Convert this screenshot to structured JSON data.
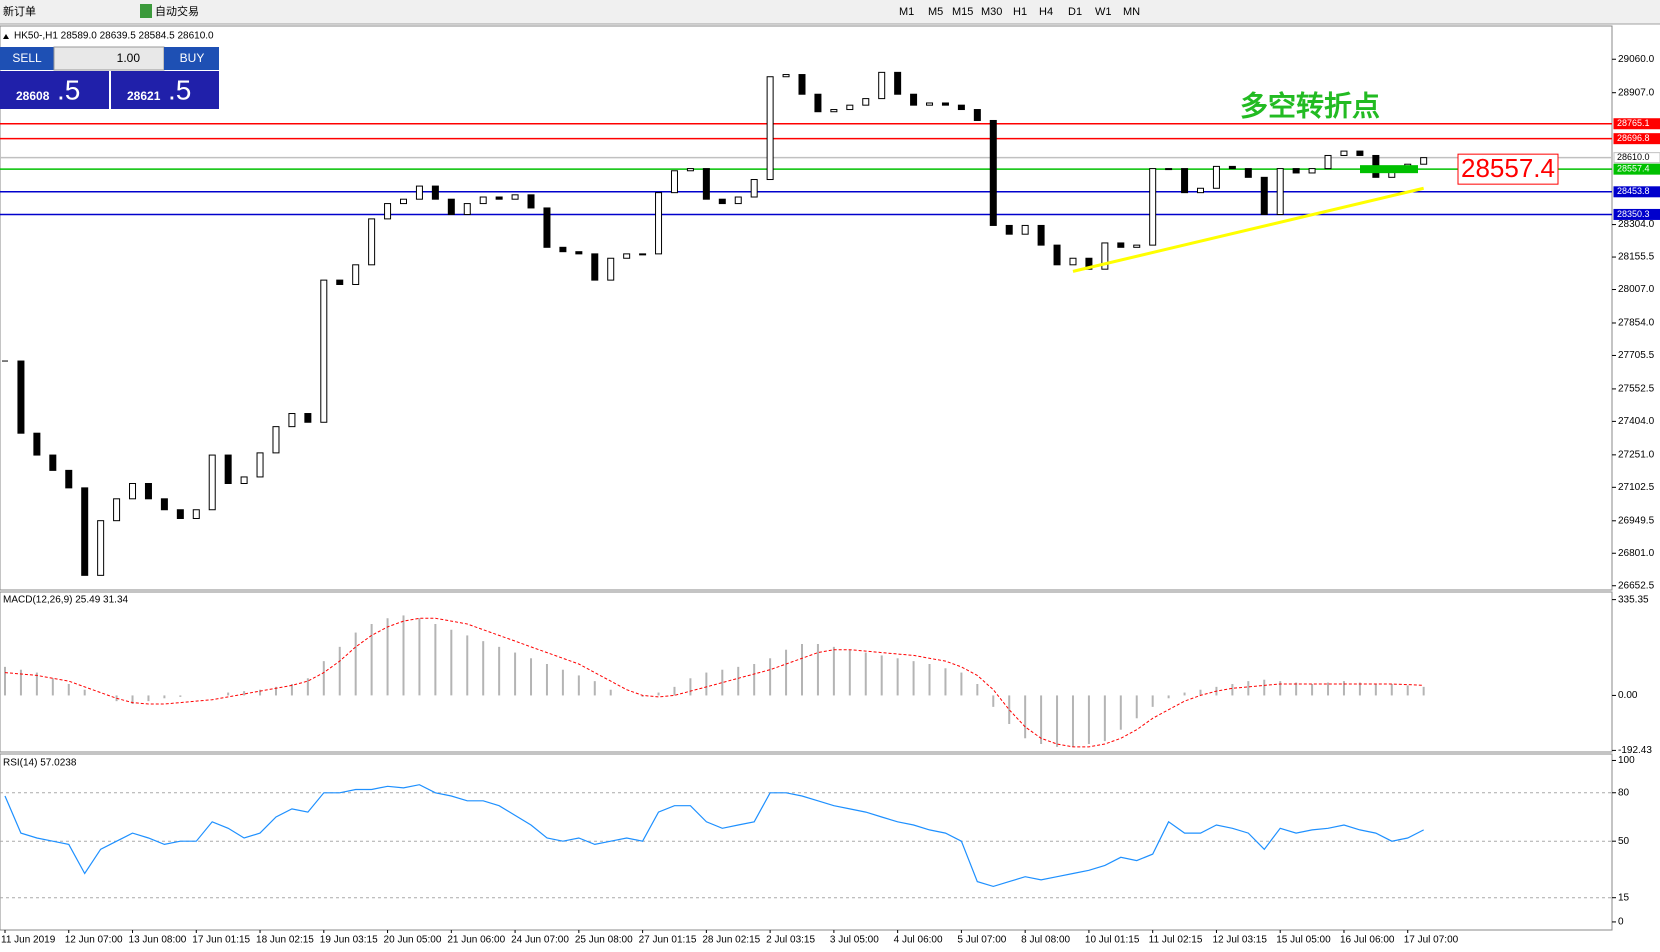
{
  "toolbar": {
    "new_order": "新订单",
    "auto_trading": "自动交易",
    "timeframes": [
      "M1",
      "M5",
      "M15",
      "M30",
      "H1",
      "H4",
      "D1",
      "W1",
      "MN"
    ]
  },
  "trade_panel": {
    "sell": "SELL",
    "buy": "BUY",
    "lots": "1.00",
    "sell_price": "28608",
    "sell_digits": ".5",
    "buy_price": "28621",
    "buy_digits": ".5"
  },
  "chart_header": "HK50-,H1  28589.0 28639.5 28584.5 28610.0",
  "macd_label": "MACD(12,26,9) 25.49 31.34",
  "rsi_label": "RSI(14) 57.0238",
  "chart_data": [
    {
      "type": "candlestick",
      "annotation": "多空转折点",
      "categories": [
        "11 Jun 2019",
        null,
        null,
        null,
        "12 Jun 07:00",
        null,
        null,
        null,
        "13 Jun 08:00",
        null,
        null,
        null,
        "17 Jun 01:15",
        null,
        null,
        null,
        "18 Jun 02:15",
        null,
        null,
        null,
        "19 Jun 03:15",
        null,
        null,
        null,
        "20 Jun 05:00",
        null,
        null,
        null,
        "21 Jun 06:00",
        null,
        null,
        null,
        "24 Jun 07:00",
        null,
        null,
        null,
        "25 Jun 08:00",
        null,
        null,
        null,
        "27 Jun 01:15",
        null,
        null,
        null,
        "28 Jun 02:15",
        null,
        null,
        null,
        "2 Jul 03:15",
        null,
        null,
        null,
        "3 Jul 05:00",
        null,
        null,
        null,
        "4 Jul 06:00",
        null,
        null,
        null,
        "5 Jul 07:00",
        null,
        null,
        null,
        "8 Jul 08:00",
        null,
        null,
        null,
        "10 Jul 01:15",
        null,
        null,
        null,
        "11 Jul 02:15",
        null,
        null,
        null,
        "12 Jul 03:15",
        null,
        null,
        null,
        "15 Jul 05:00",
        null,
        null,
        null,
        "16 Jul 06:00",
        null,
        null,
        null,
        "17 Jul 07:00",
        null
      ],
      "close": [
        27680,
        27350,
        27250,
        27180,
        27100,
        26700,
        26950,
        27050,
        27120,
        27050,
        27000,
        26960,
        27000,
        27250,
        27120,
        27150,
        27260,
        27380,
        27440,
        27400,
        28050,
        28030,
        28120,
        28330,
        28400,
        28420,
        28480,
        28420,
        28350,
        28400,
        28430,
        28420,
        28440,
        28380,
        28200,
        28180,
        28170,
        28050,
        28150,
        28170,
        28170,
        28450,
        28550,
        28560,
        28420,
        28400,
        28430,
        28510,
        28980,
        28990,
        28900,
        28820,
        28830,
        28850,
        28880,
        29000,
        28900,
        28850,
        28860,
        28850,
        28830,
        28780,
        28300,
        28260,
        28300,
        28210,
        28120,
        28150,
        28100,
        28220,
        28200,
        28210,
        28560,
        28560,
        28450,
        28470,
        28570,
        28560,
        28520,
        28350,
        28560,
        28540,
        28560,
        28620,
        28640,
        28620,
        28520,
        28560,
        28580,
        28610
      ],
      "ylim": [
        26633,
        29212
      ],
      "yticks": [
        {
          "value": 29060,
          "label": "29060.0"
        },
        {
          "value": 28907,
          "label": "28907.0"
        },
        {
          "value": 28304,
          "label": "28304.0"
        },
        28155.5,
        {
          "value": 28007,
          "label": "28007.0"
        },
        {
          "value": 27854,
          "label": "27854.0"
        },
        27705.5,
        27552.5,
        {
          "value": 27404,
          "label": "27404.0"
        },
        {
          "value": 27251,
          "label": "27251.0"
        },
        27102.5,
        26949.5,
        {
          "value": 26801,
          "label": "26801.0"
        },
        26652.5
      ],
      "levels": [
        {
          "value": 28765.1,
          "color": "#ff0000",
          "box": "#ff0000"
        },
        {
          "value": 28696.8,
          "color": "#ff0000",
          "box": "#ff0000"
        },
        {
          "value": 28610,
          "label": "28610.0",
          "color": "#c0c0c0",
          "box": "#ffffff"
        },
        {
          "value": 28557.4,
          "color": "#00c000",
          "box": "#00c000"
        },
        {
          "value": 28453.8,
          "color": "#0000cc",
          "box": "#0000cc"
        },
        {
          "value": 28350.3,
          "color": "#0000cc",
          "box": "#0000cc"
        }
      ],
      "trendline": {
        "color": "#ffff00",
        "points": [
          [
            67,
            28090
          ],
          [
            89,
            28470
          ]
        ]
      }
    },
    {
      "type": "macd",
      "histogram": [
        100,
        90,
        80,
        60,
        40,
        20,
        0,
        -20,
        -30,
        -20,
        -10,
        -5,
        0,
        0,
        10,
        15,
        20,
        30,
        40,
        60,
        120,
        170,
        220,
        250,
        270,
        280,
        270,
        250,
        230,
        210,
        190,
        170,
        150,
        130,
        110,
        90,
        70,
        50,
        20,
        0,
        -5,
        10,
        30,
        60,
        80,
        90,
        100,
        110,
        130,
        160,
        180,
        180,
        170,
        160,
        150,
        140,
        130,
        120,
        110,
        95,
        80,
        40,
        -40,
        -100,
        -150,
        -170,
        -180,
        -180,
        -170,
        -160,
        -120,
        -80,
        -40,
        -10,
        10,
        20,
        30,
        40,
        50,
        55,
        50,
        45,
        40,
        45,
        50,
        45,
        40,
        40,
        35,
        30
      ],
      "signal": [
        80,
        75,
        70,
        60,
        50,
        30,
        10,
        -10,
        -25,
        -30,
        -30,
        -25,
        -20,
        -15,
        -5,
        5,
        15,
        25,
        35,
        50,
        80,
        120,
        170,
        210,
        240,
        260,
        270,
        270,
        260,
        250,
        230,
        210,
        190,
        170,
        150,
        130,
        110,
        80,
        50,
        20,
        0,
        -5,
        0,
        15,
        30,
        45,
        60,
        75,
        90,
        110,
        130,
        150,
        160,
        160,
        155,
        150,
        145,
        140,
        130,
        120,
        100,
        70,
        20,
        -50,
        -110,
        -150,
        -170,
        -180,
        -180,
        -170,
        -150,
        -120,
        -80,
        -50,
        -20,
        0,
        15,
        25,
        30,
        35,
        40,
        40,
        40,
        40,
        40,
        40,
        40,
        40,
        38,
        35
      ],
      "hist_color": "#b4b4b4",
      "signal_color": "#ff0000",
      "ylim": [
        -198,
        362
      ],
      "yticks": [
        335.35,
        {
          "value": 0,
          "label": "0.00"
        },
        -192.43
      ]
    },
    {
      "type": "line",
      "values": [
        78,
        55,
        52,
        50,
        48,
        30,
        45,
        50,
        55,
        52,
        48,
        50,
        50,
        62,
        58,
        52,
        55,
        65,
        70,
        68,
        80,
        80,
        82,
        82,
        84,
        83,
        85,
        80,
        78,
        75,
        75,
        72,
        66,
        60,
        52,
        50,
        52,
        48,
        50,
        52,
        50,
        68,
        72,
        72,
        62,
        58,
        60,
        62,
        80,
        80,
        78,
        75,
        72,
        70,
        68,
        65,
        62,
        60,
        57,
        55,
        50,
        25,
        22,
        25,
        28,
        26,
        28,
        30,
        32,
        35,
        40,
        38,
        42,
        62,
        55,
        55,
        60,
        58,
        55,
        45,
        58,
        55,
        57,
        58,
        60,
        57,
        55,
        50,
        52,
        57
      ],
      "color": "#1e90ff",
      "ylim": [
        -5,
        104
      ],
      "yticks": [
        100,
        80,
        50,
        15,
        0
      ]
    }
  ]
}
